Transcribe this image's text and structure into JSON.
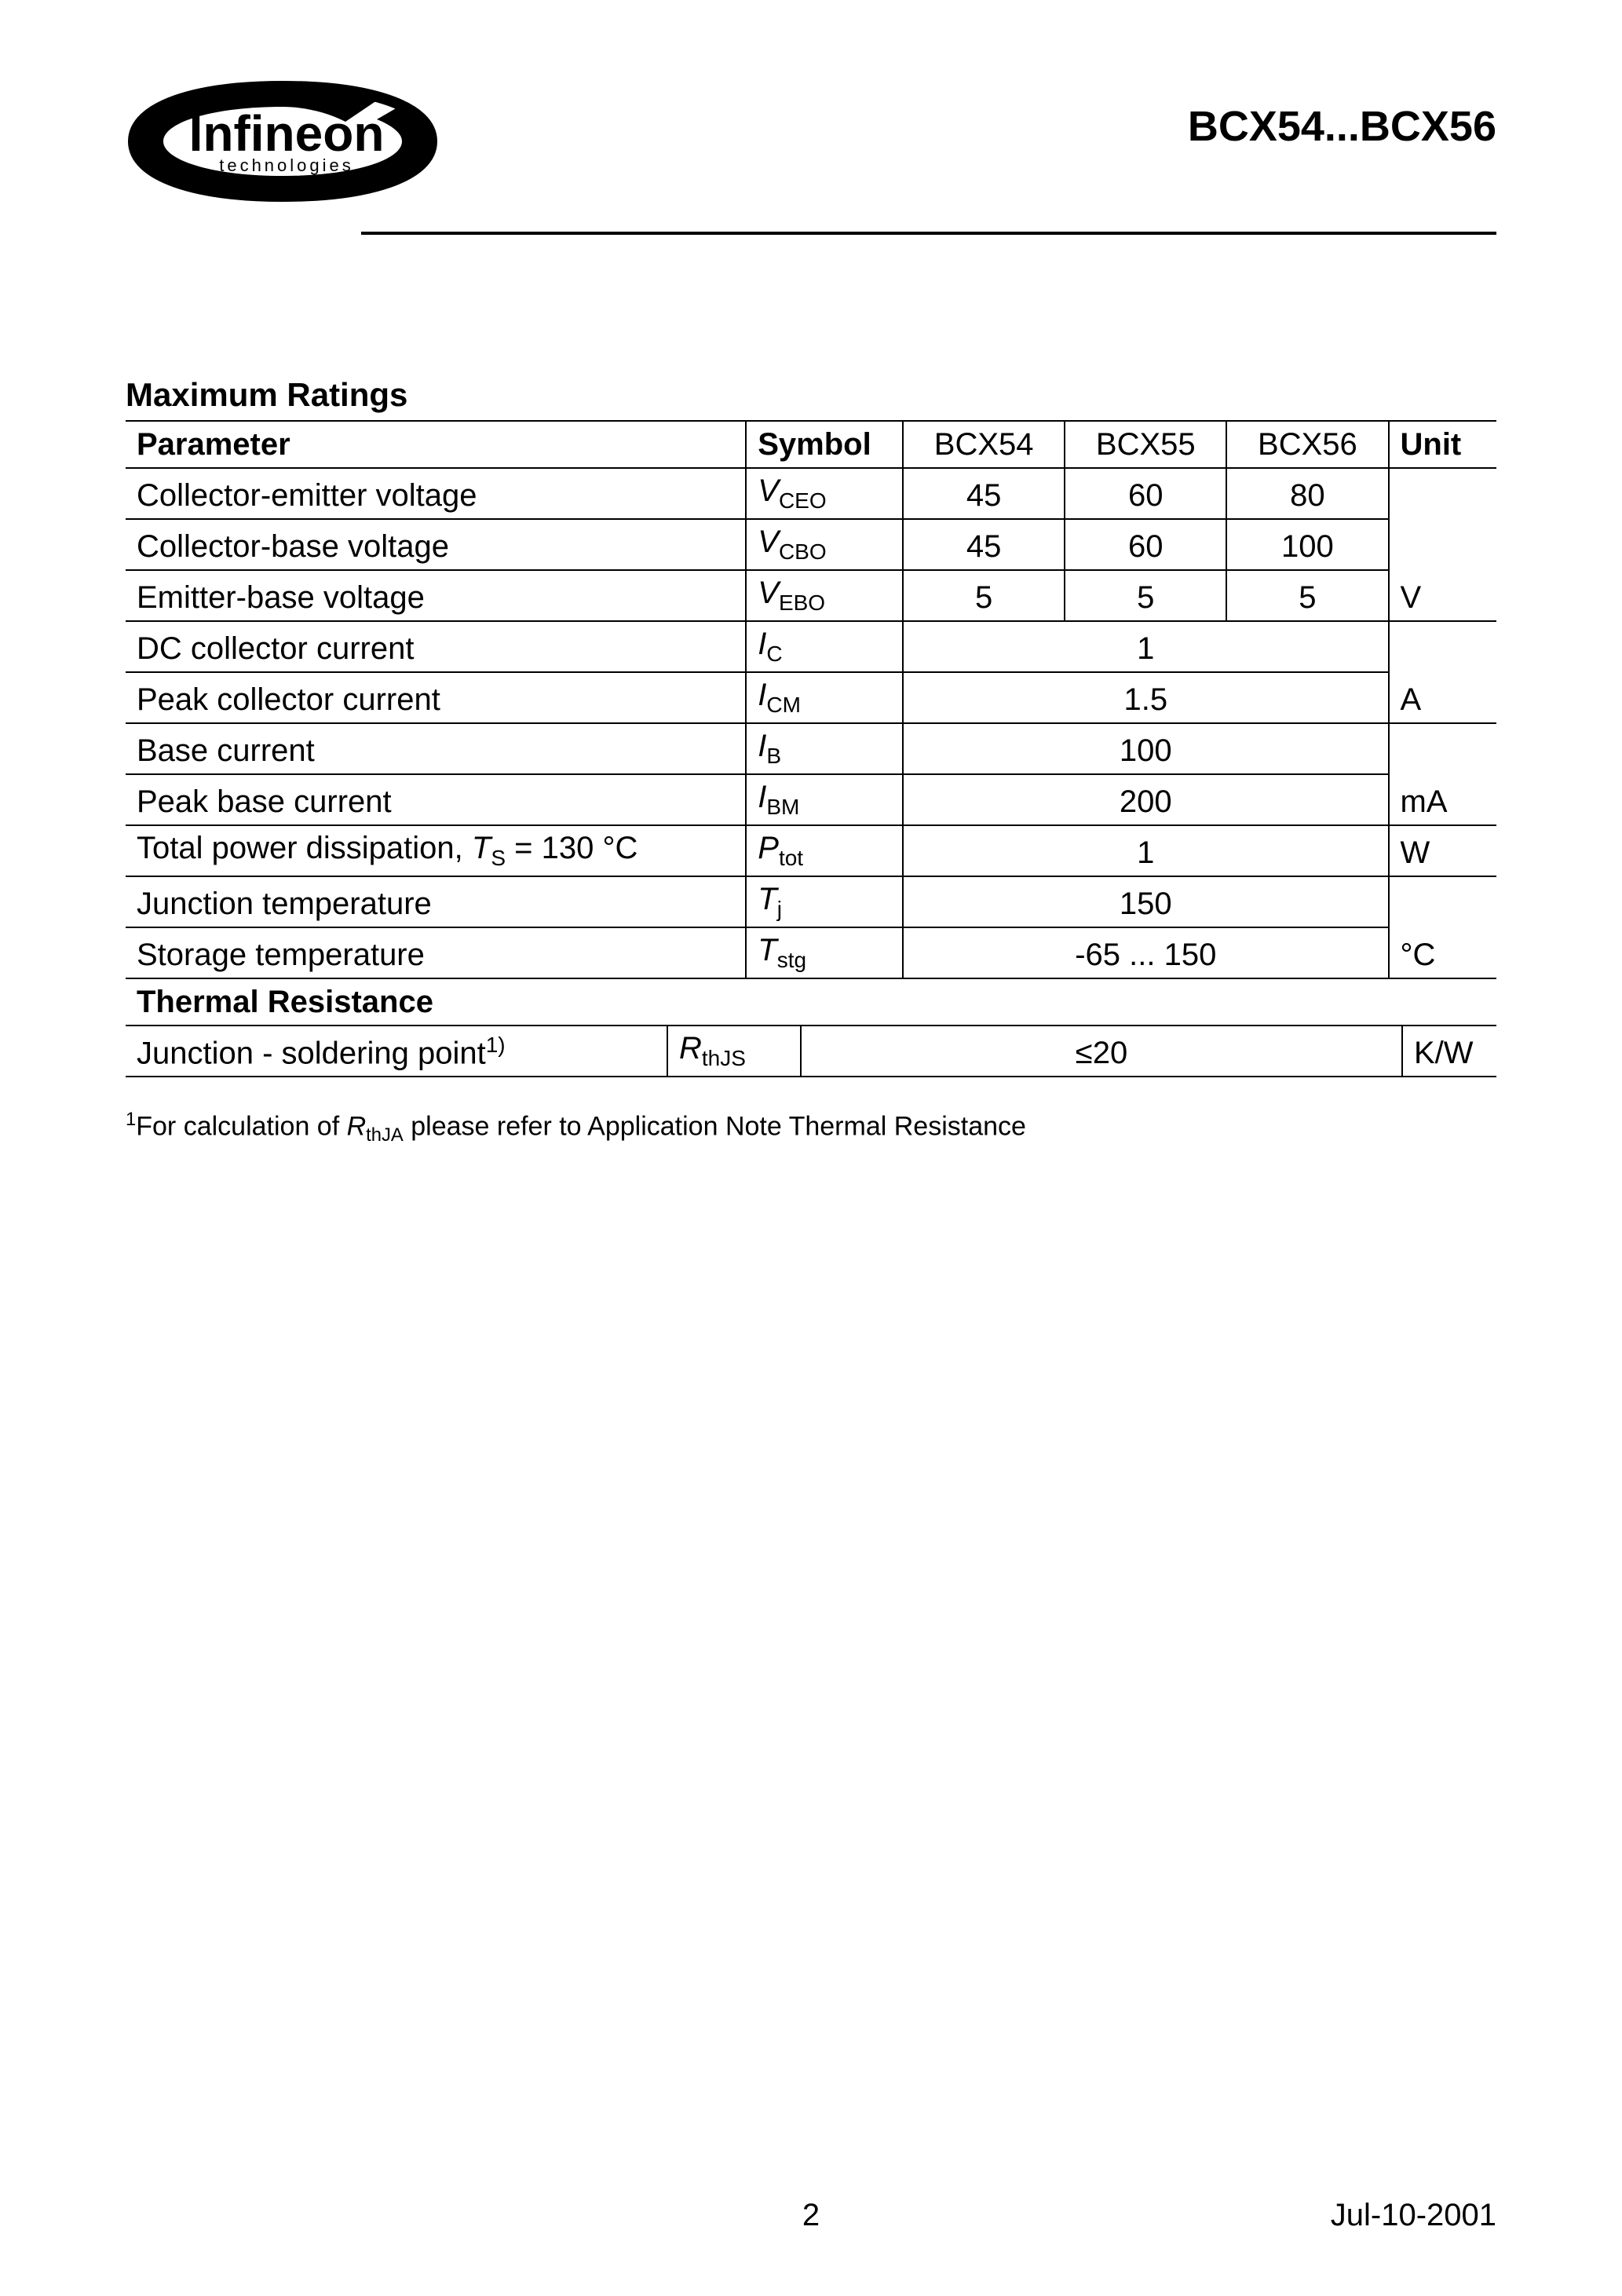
{
  "header": {
    "logo_top": "Infineon",
    "logo_sub": "technologies",
    "product": "BCX54...BCX56"
  },
  "section1_title": "Maximum Ratings",
  "columns": {
    "parameter": "Parameter",
    "symbol": "Symbol",
    "c1": "BCX54",
    "c2": "BCX55",
    "c3": "BCX56",
    "unit": "Unit"
  },
  "rows": [
    {
      "param": "Collector-emitter voltage",
      "sym_base": "V",
      "sym_sub": "CEO",
      "v1": "45",
      "v2": "60",
      "v3": "80",
      "unit": "V",
      "span": 1,
      "unit_rowspan": 3
    },
    {
      "param": "Collector-base voltage",
      "sym_base": "V",
      "sym_sub": "CBO",
      "v1": "45",
      "v2": "60",
      "v3": "100",
      "span": 1
    },
    {
      "param": "Emitter-base voltage",
      "sym_base": "V",
      "sym_sub": "EBO",
      "v1": "5",
      "v2": "5",
      "v3": "5",
      "span": 1
    },
    {
      "param": "DC collector current",
      "sym_base": "I",
      "sym_sub": "C",
      "v": "1",
      "span": 3,
      "unit": "A",
      "unit_rowspan": 2
    },
    {
      "param": "Peak collector current",
      "sym_base": "I",
      "sym_sub": "CM",
      "v": "1.5",
      "span": 3
    },
    {
      "param": "Base current",
      "sym_base": "I",
      "sym_sub": "B",
      "v": "100",
      "span": 3,
      "unit": "mA",
      "unit_rowspan": 2
    },
    {
      "param": "Peak base current",
      "sym_base": "I",
      "sym_sub": "BM",
      "v": "200",
      "span": 3
    },
    {
      "param_html": "Total power dissipation, <span class=\"symbol-base\">T</span><span class=\"sub\">S</span> = 130 °C",
      "sym_base": "P",
      "sym_sub": "tot",
      "v": "1",
      "span": 3,
      "unit": "W",
      "unit_rowspan": 1
    },
    {
      "param": "Junction temperature",
      "sym_base": "T",
      "sym_sub": "j",
      "v": "150",
      "span": 3,
      "unit": "°C",
      "unit_rowspan": 2
    },
    {
      "param": "Storage temperature",
      "sym_base": "T",
      "sym_sub": "stg",
      "v": "-65 ... 150",
      "span": 3
    }
  ],
  "section2_title": "Thermal Resistance",
  "row2": {
    "param_html": "Junction - soldering point<span class=\"sup\">1)</span>",
    "sym_base": "R",
    "sym_sub": "thJS",
    "v": "≤20",
    "unit": "K/W"
  },
  "footnote_html": "<span class=\"sup\">1</span>For calculation of <span class=\"symbol-base\">R</span><span class=\"sub\">thJA</span> please refer to Application Note Thermal Resistance",
  "footer": {
    "page": "2",
    "date": "Jul-10-2001"
  },
  "colors": {
    "text": "#000000",
    "bg": "#ffffff",
    "rule": "#000000"
  }
}
